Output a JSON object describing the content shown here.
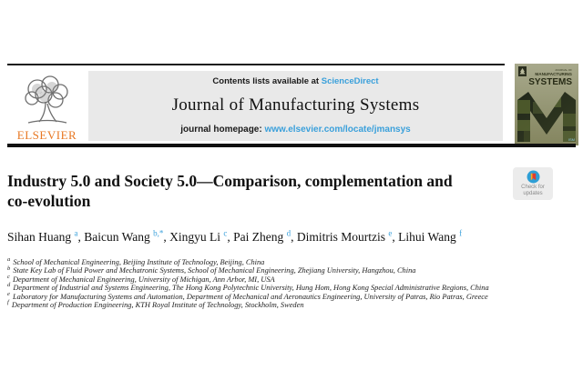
{
  "header": {
    "elsevier_logo_text": "ELSEVIER",
    "contents_prefix": "Contents lists available at ",
    "contents_link": "ScienceDirect",
    "journal_title": "Journal of Manufacturing Systems",
    "homepage_prefix": "journal homepage: ",
    "homepage_url": "www.elsevier.com/locate/jmansys",
    "cover": {
      "title_line1": "JOURNAL OF",
      "title_line2": "MANUFACTURING",
      "title_line3": "SYSTEMS",
      "corner_mark": "ISM"
    }
  },
  "badge": {
    "line1": "Check for",
    "line2": "updates"
  },
  "article": {
    "title": "Industry 5.0 and Society 5.0—Comparison, complementation and co-evolution",
    "author_separator": ", ",
    "authors": [
      {
        "name": "Sihan Huang",
        "sup": "a"
      },
      {
        "name": "Baicun Wang",
        "sup": "b,*"
      },
      {
        "name": "Xingyu Li",
        "sup": "c"
      },
      {
        "name": "Pai Zheng",
        "sup": "d"
      },
      {
        "name": "Dimitris Mourtzis",
        "sup": "e"
      },
      {
        "name": "Lihui Wang",
        "sup": "f"
      }
    ],
    "affiliations": [
      {
        "sup": "a",
        "text": "School of Mechanical Engineering, Beijing Institute of Technology, Beijing, China"
      },
      {
        "sup": "b",
        "text": "State Key Lab of Fluid Power and Mechatronic Systems, School of Mechanical Engineering, Zhejiang University, Hangzhou, China"
      },
      {
        "sup": "c",
        "text": "Department of Mechanical Engineering, University of Michigan, Ann Arbor, MI, USA"
      },
      {
        "sup": "d",
        "text": "Department of Industrial and Systems Engineering, The Hong Kong Polytechnic University, Hung Hom, Hong Kong Special Administrative Regions, China"
      },
      {
        "sup": "e",
        "text": "Laboratory for Manufacturing Systems and Automation, Department of Mechanical and Aeronautics Engineering, University of Patras, Rio Patras, Greece"
      },
      {
        "sup": "f",
        "text": "Department of Production Engineering, KTH Royal Institute of Technology, Stockholm, Sweden"
      }
    ]
  },
  "colors": {
    "link_blue": "#3aa0db",
    "elsevier_orange": "#e87722",
    "banner_gray": "#e9e9e9",
    "cover_olive": "#9a9b7d",
    "crossmark_blue": "#2e9fd6",
    "crossmark_red": "#e23b30",
    "crossmark_yellow": "#f0b429"
  }
}
